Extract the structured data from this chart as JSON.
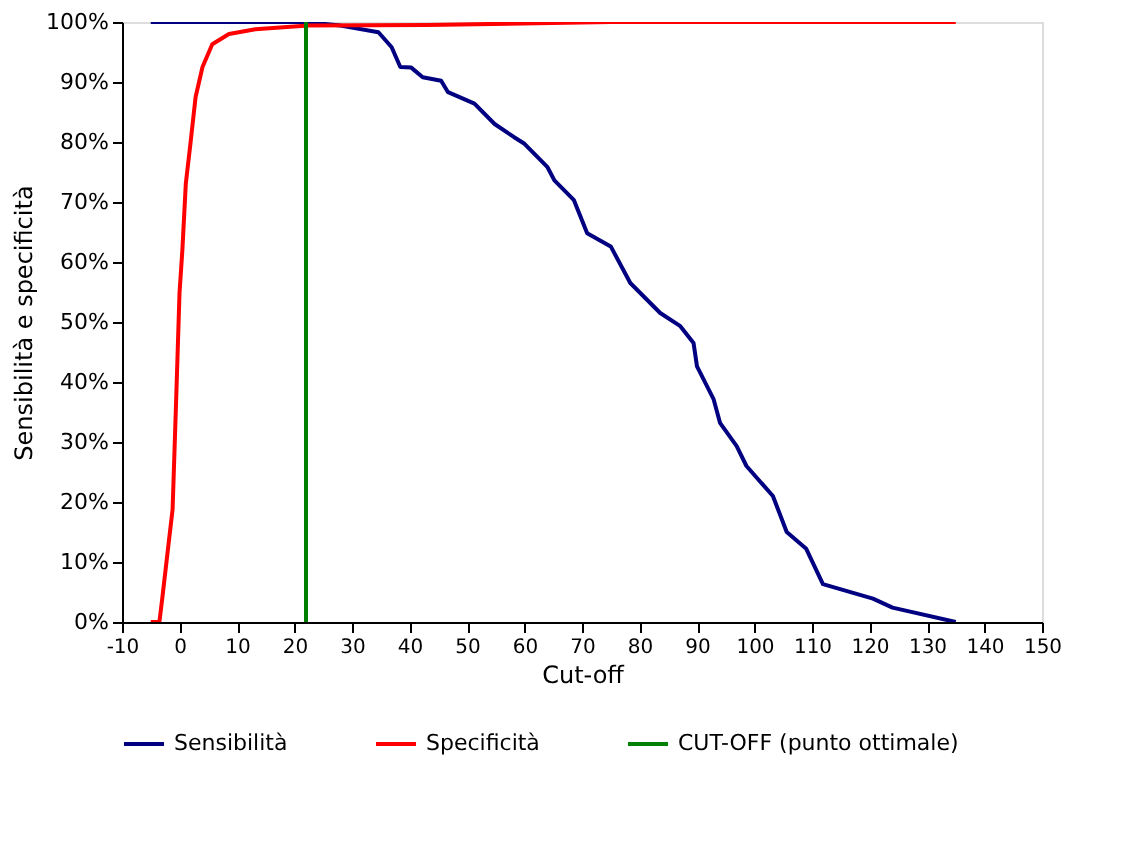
{
  "chart_data": {
    "type": "line",
    "xlabel": "Cut-off",
    "ylabel": "Sensibilità e specificità",
    "xlim": [
      -10,
      150
    ],
    "xticks": [
      -10,
      0,
      10,
      20,
      30,
      40,
      50,
      60,
      70,
      80,
      90,
      100,
      110,
      120,
      130,
      140,
      150
    ],
    "ylim": [
      0,
      100
    ],
    "yticks": [
      {
        "value": 0,
        "label": "0%"
      },
      {
        "value": 10,
        "label": "10%"
      },
      {
        "value": 20,
        "label": "20%"
      },
      {
        "value": 30,
        "label": "30%"
      },
      {
        "value": 40,
        "label": "40%"
      },
      {
        "value": 50,
        "label": "50%"
      },
      {
        "value": 60,
        "label": "60%"
      },
      {
        "value": 70,
        "label": "70%"
      },
      {
        "value": 80,
        "label": "80%"
      },
      {
        "value": 90,
        "label": "90%"
      },
      {
        "value": 100,
        "label": "100%"
      }
    ],
    "grid": false,
    "legend": "bottom",
    "marker": "none",
    "line_style": "solid",
    "series": [
      {
        "name": "Sensibilità",
        "color": "#000080",
        "x": [
          -5,
          22,
          28,
          34.6,
          36.9,
          38.4,
          40.3,
          42.3,
          45.5,
          46.7,
          51.3,
          54.8,
          58.2,
          60,
          64,
          65.2,
          68.6,
          70.9,
          75,
          78.4,
          83.6,
          87.1,
          89.4,
          90,
          92.9,
          94,
          96.9,
          98.6,
          103.2,
          105.6,
          109,
          111.9,
          120.6,
          124,
          135
        ],
        "values": [
          100,
          100,
          99.4,
          98.3,
          95.8,
          92.5,
          92.4,
          90.8,
          90.2,
          88.3,
          86.4,
          83,
          80.8,
          79.7,
          75.8,
          73.6,
          70.3,
          64.8,
          62.6,
          56.5,
          51.5,
          49.3,
          46.5,
          42.6,
          37.1,
          33.2,
          29.3,
          26,
          21,
          15,
          12.2,
          6.3,
          3.9,
          2.4,
          0
        ]
      },
      {
        "name": "Specificità",
        "color": "#ff0000",
        "x": [
          -5,
          -3.5,
          -3,
          -2,
          -1.2,
          -0.6,
          0,
          0.5,
          1.1,
          1.9,
          2.8,
          4,
          5.7,
          8.6,
          13.2,
          22.4,
          43,
          75,
          135
        ],
        "values": [
          0,
          0,
          3.9,
          12.2,
          18.8,
          36.5,
          54.8,
          62,
          73.1,
          79.7,
          87.5,
          92.5,
          96.3,
          98,
          98.8,
          99.4,
          99.5,
          100,
          100
        ]
      },
      {
        "name": "CUT-OFF (punto ottimale)",
        "color": "#008000",
        "x": [
          22,
          22
        ],
        "values": [
          0,
          100
        ]
      }
    ]
  }
}
